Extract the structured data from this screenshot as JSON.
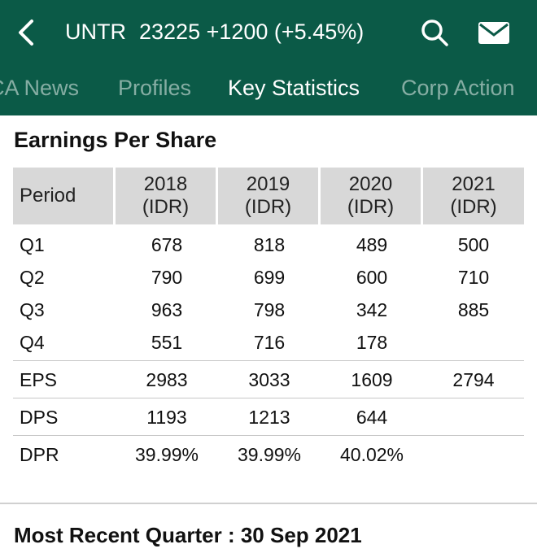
{
  "header": {
    "symbol": "UNTR",
    "quote": "23225 +1200 (+5.45%)",
    "background": "#0b5a47"
  },
  "tabs": [
    {
      "label": "CA News",
      "active": false
    },
    {
      "label": "Profiles",
      "active": false
    },
    {
      "label": "Key Statistics",
      "active": true
    },
    {
      "label": "Corp Action",
      "active": false
    }
  ],
  "eps_section": {
    "title": "Earnings Per Share",
    "columns": [
      {
        "label": "Period"
      },
      {
        "year": "2018",
        "unit": "(IDR)"
      },
      {
        "year": "2019",
        "unit": "(IDR)"
      },
      {
        "year": "2020",
        "unit": "(IDR)"
      },
      {
        "year": "2021",
        "unit": "(IDR)"
      }
    ],
    "rows": [
      {
        "period": "Q1",
        "values": [
          "678",
          "818",
          "489",
          "500"
        ]
      },
      {
        "period": "Q2",
        "values": [
          "790",
          "699",
          "600",
          "710"
        ]
      },
      {
        "period": "Q3",
        "values": [
          "963",
          "798",
          "342",
          "885"
        ]
      },
      {
        "period": "Q4",
        "values": [
          "551",
          "716",
          "178",
          ""
        ]
      },
      {
        "period": "EPS",
        "values": [
          "2983",
          "3033",
          "1609",
          "2794"
        ]
      },
      {
        "period": "DPS",
        "values": [
          "1193",
          "1213",
          "644",
          ""
        ]
      },
      {
        "period": "DPR",
        "values": [
          "39.99%",
          "39.99%",
          "40.02%",
          ""
        ]
      }
    ]
  },
  "most_recent_quarter": "Most Recent Quarter : 30 Sep 2021",
  "icons": {
    "back": "chevron-left-icon",
    "search": "search-icon",
    "mail": "mail-icon"
  }
}
